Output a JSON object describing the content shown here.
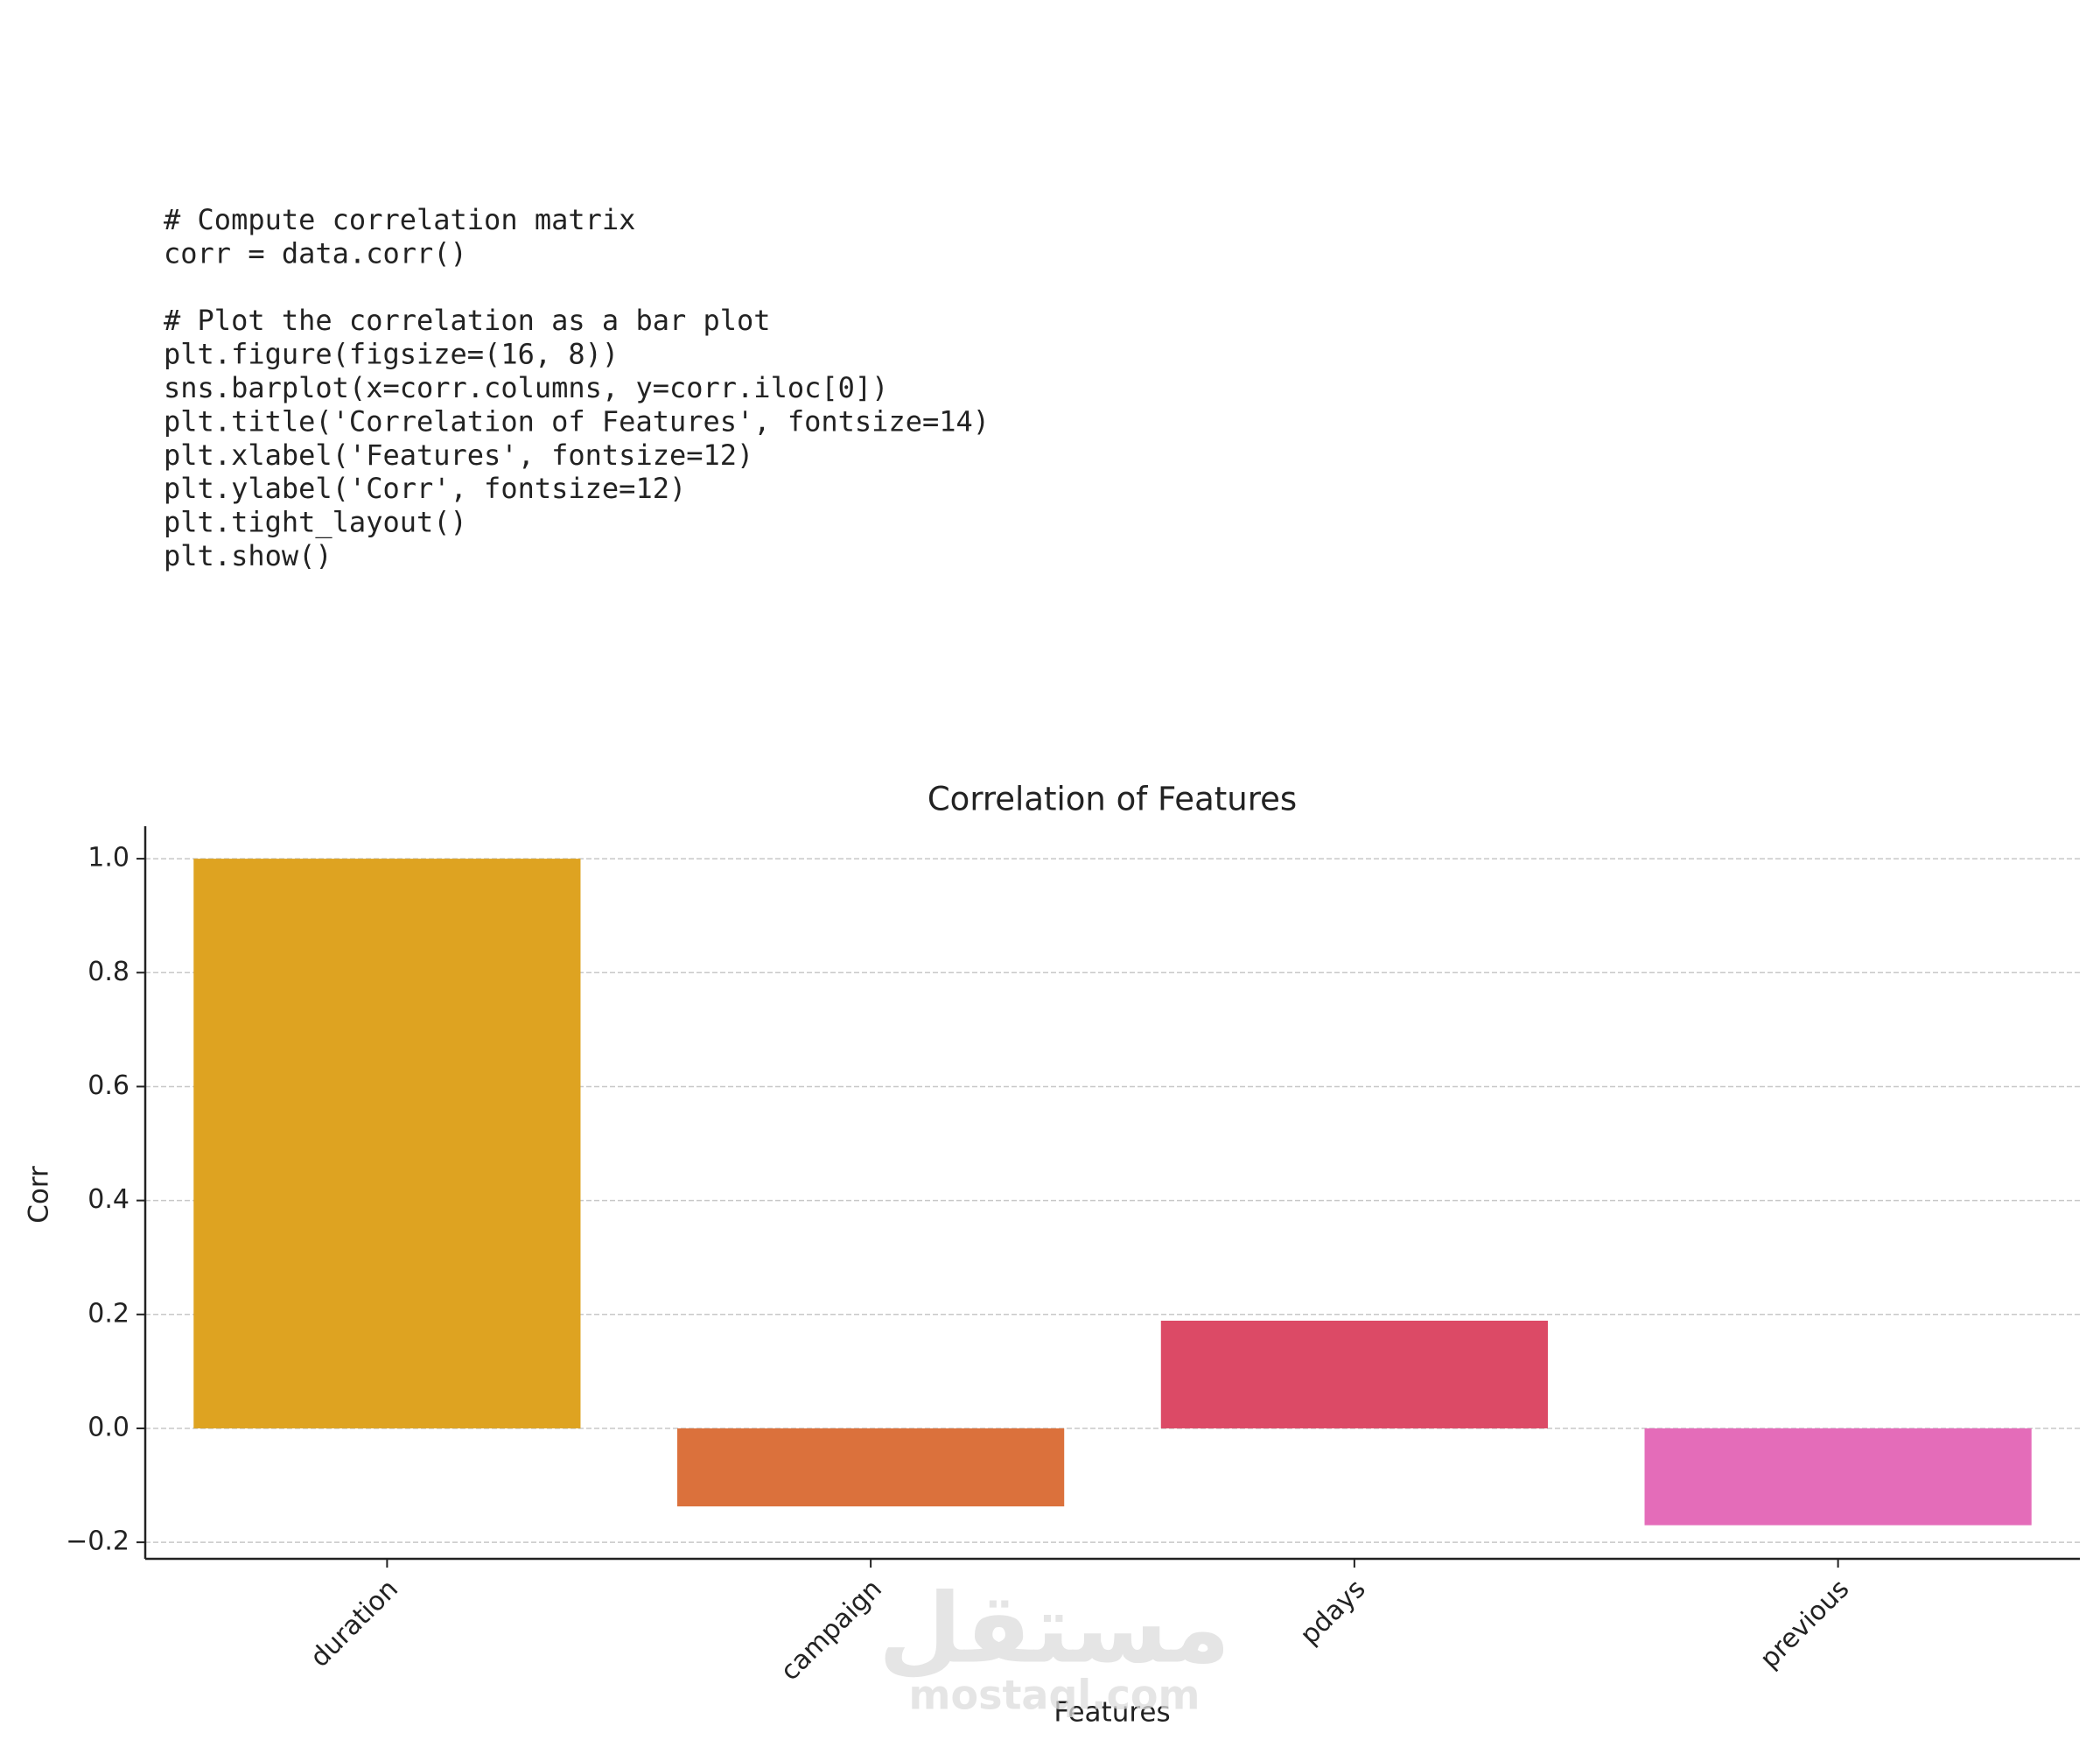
{
  "code": [
    [
      "# Compute correlation matrix",
      "corr = data.corr()"
    ],
    [
      "# Plot the correlation as a bar plot",
      "plt.figure(figsize=(16, 8))",
      "sns.barplot(x=corr.columns, y=corr.iloc[0])",
      "plt.title('Correlation of Features', fontsize=14)",
      "plt.xlabel('Features', fontsize=12)",
      "plt.ylabel('Corr', fontsize=12)",
      "plt.tight_layout()",
      "plt.show()"
    ]
  ],
  "chart_data": {
    "type": "bar",
    "title": "Correlation of Features",
    "x_label": "Features",
    "y_label": "Corr",
    "categories": [
      "duration",
      "campaign",
      "pdays",
      "previous"
    ],
    "values": [
      1.0,
      -0.137,
      0.189,
      -0.17
    ],
    "colors": [
      "#dea321",
      "#db713c",
      "#dc4a66",
      "#e46cb9"
    ],
    "ylim": [
      -0.229,
      1.057
    ],
    "yticks": [
      {
        "value": -0.2,
        "label": "−0.2"
      },
      {
        "value": 0,
        "label": "0.0"
      },
      0.2,
      0.4,
      0.6,
      0.8,
      {
        "value": 1,
        "label": "1.0"
      }
    ],
    "grid": true
  },
  "watermark": {
    "arabic": "مستقل",
    "latin": "mostaql.com"
  }
}
